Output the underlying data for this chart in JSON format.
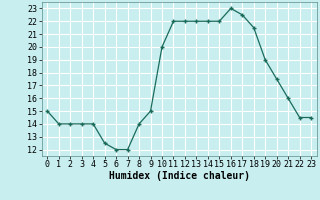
{
  "x": [
    0,
    1,
    2,
    3,
    4,
    5,
    6,
    7,
    8,
    9,
    10,
    11,
    12,
    13,
    14,
    15,
    16,
    17,
    18,
    19,
    20,
    21,
    22,
    23
  ],
  "y": [
    15,
    14,
    14,
    14,
    14,
    12.5,
    12,
    12,
    14,
    15,
    20,
    22,
    22,
    22,
    22,
    22,
    23,
    22.5,
    21.5,
    19,
    17.5,
    16,
    14.5,
    14.5
  ],
  "line_color": "#1a6b5a",
  "marker": "+",
  "markersize": 3.5,
  "linewidth": 0.9,
  "bg_color": "#c8eef0",
  "grid_color": "#ffffff",
  "xlabel": "Humidex (Indice chaleur)",
  "xlim": [
    -0.5,
    23.5
  ],
  "ylim": [
    11.5,
    23.5
  ],
  "xticks": [
    0,
    1,
    2,
    3,
    4,
    5,
    6,
    7,
    8,
    9,
    10,
    11,
    12,
    13,
    14,
    15,
    16,
    17,
    18,
    19,
    20,
    21,
    22,
    23
  ],
  "yticks": [
    12,
    13,
    14,
    15,
    16,
    17,
    18,
    19,
    20,
    21,
    22,
    23
  ],
  "xlabel_fontsize": 7,
  "tick_fontsize": 6
}
